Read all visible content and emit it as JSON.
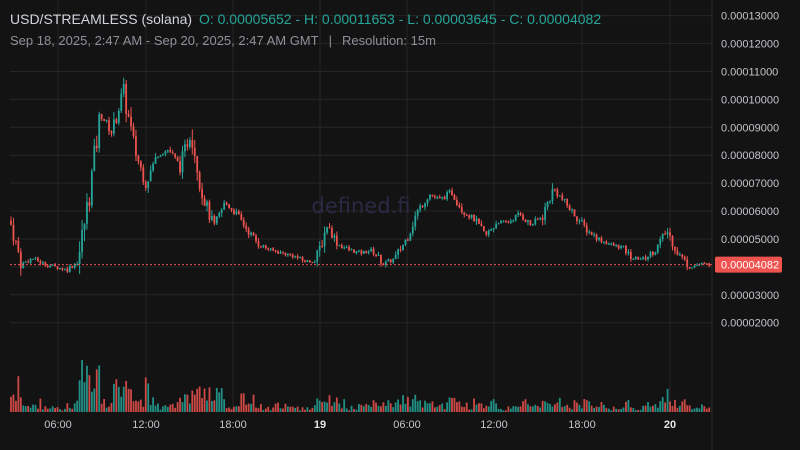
{
  "header": {
    "symbol": "USD/STREAMLESS (solana)",
    "ohlc": "O: 0.00005652 - H: 0.00011653 - L: 0.00003645 - C: 0.00004082",
    "range": "Sep 18, 2025, 2:47 AM - Sep 20, 2025, 2:47 AM GMT",
    "separator": "|",
    "resolution": "Resolution: 15m"
  },
  "watermark": "defined.fi",
  "colors": {
    "background": "#131313",
    "up": "#26a69a",
    "down": "#ef5350",
    "grid": "#262626",
    "lastPriceLabel": "#ef5350"
  },
  "chart_data": {
    "type": "candlestick",
    "title": "USD/STREAMLESS (solana)",
    "resolution": "15m",
    "x_range": [
      "2025-09-18 02:47",
      "2025-09-20 02:47"
    ],
    "x_ticks": [
      "06:00",
      "12:00",
      "18:00",
      "19",
      "06:00",
      "12:00",
      "18:00",
      "20"
    ],
    "y_ticks": [
      "0.00013000",
      "0.00012000",
      "0.00011000",
      "0.00010000",
      "0.00009000",
      "0.00008000",
      "0.00007000",
      "0.00006000",
      "0.00005000",
      "0.00004000",
      "0.00003000",
      "0.00002000"
    ],
    "ylim": [
      9.5e-06,
      0.0001313
    ],
    "last_price": 4.082e-05,
    "last_price_label": "0.00004082",
    "open": 5.652e-05,
    "high": 0.00011653,
    "low": 3.645e-05,
    "close": 4.082e-05,
    "price_path": [
      {
        "t": "02:47",
        "price": 5.65e-05
      },
      {
        "t": "03:15",
        "price": 4.1e-05
      },
      {
        "t": "04:00",
        "price": 4.3e-05
      },
      {
        "t": "05:00",
        "price": 4.1e-05
      },
      {
        "t": "06:00",
        "price": 4e-05
      },
      {
        "t": "07:00",
        "price": 3.9e-05
      },
      {
        "t": "07:30",
        "price": 4.2e-05
      },
      {
        "t": "08:00",
        "price": 6.6e-05
      },
      {
        "t": "08:15",
        "price": 9.5e-05
      },
      {
        "t": "08:30",
        "price": 8.8e-05
      },
      {
        "t": "09:00",
        "price": 0.000103
      },
      {
        "t": "09:30",
        "price": 8.2e-05
      },
      {
        "t": "10:00",
        "price": 7e-05
      },
      {
        "t": "10:30",
        "price": 8e-05
      },
      {
        "t": "11:00",
        "price": 8.2e-05
      },
      {
        "t": "11:30",
        "price": 7.6e-05
      },
      {
        "t": "12:00",
        "price": 8.9e-05
      },
      {
        "t": "12:30",
        "price": 6.6e-05
      },
      {
        "t": "13:00",
        "price": 5.4e-05
      },
      {
        "t": "13:30",
        "price": 6.3e-05
      },
      {
        "t": "14:00",
        "price": 5.9e-05
      },
      {
        "t": "15:00",
        "price": 5.3e-05
      },
      {
        "t": "16:00",
        "price": 4.8e-05
      },
      {
        "t": "17:00",
        "price": 4.6e-05
      },
      {
        "t": "18:00",
        "price": 4.5e-05
      },
      {
        "t": "19:00",
        "price": 4.4e-05
      },
      {
        "t": "20:00",
        "price": 4.2e-05
      },
      {
        "t": "21:00",
        "price": 4.2e-05
      },
      {
        "t": "22:00",
        "price": 5.5e-05
      },
      {
        "t": "22:30",
        "price": 4.8e-05
      },
      {
        "t": "23:00",
        "price": 4.6e-05
      },
      {
        "t": "00:00",
        "price": 4.5e-05
      },
      {
        "t": "01:00",
        "price": 4.6e-05
      },
      {
        "t": "02:00",
        "price": 4.1e-05
      },
      {
        "t": "03:00",
        "price": 4.3e-05
      },
      {
        "t": "04:00",
        "price": 5e-05
      },
      {
        "t": "05:00",
        "price": 6e-05
      },
      {
        "t": "06:00",
        "price": 6.6e-05
      },
      {
        "t": "06:30",
        "price": 6.4e-05
      },
      {
        "t": "07:00",
        "price": 6.7e-05
      },
      {
        "t": "08:00",
        "price": 6e-05
      },
      {
        "t": "09:00",
        "price": 5.7e-05
      },
      {
        "t": "10:00",
        "price": 5.1e-05
      },
      {
        "t": "11:00",
        "price": 5.6e-05
      },
      {
        "t": "12:00",
        "price": 5.6e-05
      },
      {
        "t": "13:00",
        "price": 5.9e-05
      },
      {
        "t": "13:30",
        "price": 5.5e-05
      },
      {
        "t": "14:00",
        "price": 5.8e-05
      },
      {
        "t": "15:00",
        "price": 6.8e-05
      },
      {
        "t": "15:30",
        "price": 6.3e-05
      },
      {
        "t": "16:00",
        "price": 5.8e-05
      },
      {
        "t": "17:00",
        "price": 5.3e-05
      },
      {
        "t": "18:00",
        "price": 5e-05
      },
      {
        "t": "19:00",
        "price": 4.8e-05
      },
      {
        "t": "20:00",
        "price": 4.7e-05
      },
      {
        "t": "21:00",
        "price": 4.3e-05
      },
      {
        "t": "22:00",
        "price": 4.3e-05
      },
      {
        "t": "23:00",
        "price": 4.6e-05
      },
      {
        "t": "23:30",
        "price": 5.3e-05
      },
      {
        "t": "00:00",
        "price": 4.5e-05
      },
      {
        "t": "00:30",
        "price": 4e-05
      },
      {
        "t": "01:30",
        "price": 4.1e-05
      },
      {
        "t": "02:47",
        "price": 4.082e-05
      }
    ]
  }
}
